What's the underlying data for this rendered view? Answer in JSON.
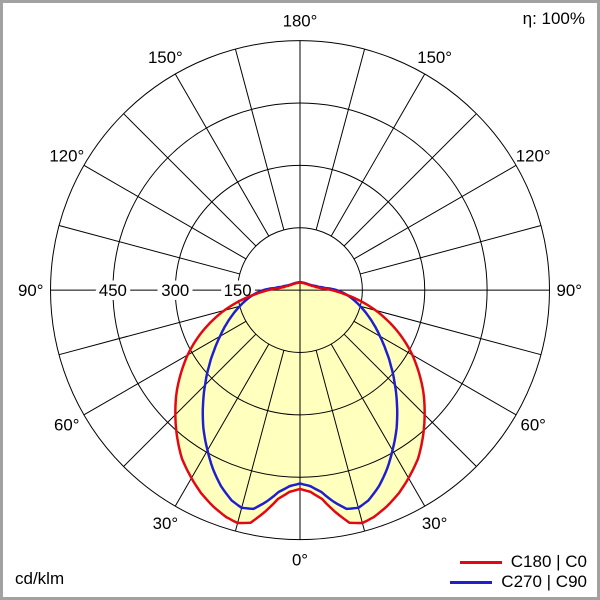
{
  "chart_data": {
    "type": "line",
    "subtype": "polar-photometric-distribution",
    "unit_label": "cd/klm",
    "efficiency_label": "η: 100%",
    "angle_ticks": [
      {
        "deg": 0,
        "label": "0°"
      },
      {
        "deg": 30,
        "label": "30°"
      },
      {
        "deg": 60,
        "label": "60°"
      },
      {
        "deg": 90,
        "label": "90°"
      },
      {
        "deg": 120,
        "label": "120°"
      },
      {
        "deg": 150,
        "label": "150°"
      },
      {
        "deg": 180,
        "label": "180°"
      }
    ],
    "radial_ticks": [
      {
        "value": 150,
        "label": "150"
      },
      {
        "value": 300,
        "label": "300"
      },
      {
        "value": 450,
        "label": "450"
      }
    ],
    "radial_axis_max": 600,
    "grid": {
      "spoke_step_deg": 15,
      "angle_label_step_deg": 30,
      "grid_color": "#000000"
    },
    "fill_color": "#ffffbe",
    "legend_position": "bottom-right",
    "series": [
      {
        "name": "C180 | C0",
        "color": "#e30613",
        "gamma_deg": [
          0,
          3,
          6,
          9,
          12,
          15,
          18,
          22,
          26,
          30,
          35,
          40,
          45,
          50,
          55,
          60,
          65,
          70,
          75,
          80,
          85,
          90,
          95,
          100,
          110,
          120,
          135,
          150,
          165,
          180
        ],
        "cd_per_klm": [
          478,
          486,
          505,
          540,
          572,
          580,
          574,
          560,
          543,
          522,
          495,
          460,
          424,
          388,
          350,
          312,
          272,
          230,
          188,
          146,
          106,
          76,
          52,
          40,
          30,
          25,
          21,
          19,
          18,
          18
        ]
      },
      {
        "name": "C270 | C90",
        "color": "#1f1fd0",
        "gamma_deg": [
          0,
          3,
          6,
          9,
          12,
          15,
          18,
          22,
          26,
          30,
          35,
          40,
          45,
          50,
          55,
          60,
          65,
          70,
          75,
          80,
          85,
          90,
          95,
          100,
          110,
          120,
          135,
          150,
          165,
          180
        ],
        "cd_per_klm": [
          465,
          472,
          488,
          515,
          538,
          542,
          532,
          508,
          478,
          445,
          405,
          363,
          323,
          286,
          252,
          222,
          196,
          172,
          150,
          130,
          110,
          88,
          60,
          45,
          32,
          26,
          22,
          20,
          19,
          19
        ]
      }
    ]
  }
}
